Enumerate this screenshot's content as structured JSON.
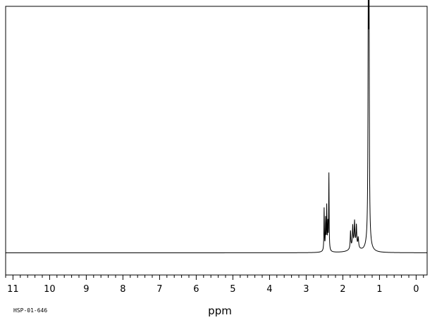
{
  "chart_data": {
    "type": "line",
    "title": "",
    "xlabel": "ppm",
    "ylabel": "",
    "sample_id": "HSP-01-646",
    "x_axis": {
      "min": -0.3,
      "max": 11.2,
      "reversed": true
    },
    "y_axis": {
      "min": -0.09,
      "max": 1.0
    },
    "x_ticks": [
      11,
      10,
      9,
      8,
      7,
      6,
      5,
      4,
      3,
      2,
      1,
      0
    ],
    "x_tick_labels": [
      "11",
      "10",
      "9",
      "8",
      "7",
      "6",
      "5",
      "4",
      "3",
      "2",
      "1",
      "0"
    ],
    "minor_tick_step": 0.2,
    "grid": false,
    "legend": "none",
    "colors": {
      "line": "#000000",
      "background": "#ffffff"
    },
    "series": [
      {
        "peaks": [
          {
            "ppm": 2.51,
            "height": 0.17,
            "width": 0.007
          },
          {
            "ppm": 2.47,
            "height": 0.12,
            "width": 0.007
          },
          {
            "ppm": 2.44,
            "height": 0.17,
            "width": 0.007
          },
          {
            "ppm": 2.41,
            "height": 0.1,
            "width": 0.007
          },
          {
            "ppm": 2.38,
            "height": 0.31,
            "width": 0.007
          },
          {
            "ppm": 1.79,
            "height": 0.07,
            "width": 0.01
          },
          {
            "ppm": 1.73,
            "height": 0.08,
            "width": 0.01
          },
          {
            "ppm": 1.68,
            "height": 0.09,
            "width": 0.01
          },
          {
            "ppm": 1.63,
            "height": 0.08,
            "width": 0.01
          },
          {
            "ppm": 1.58,
            "height": 0.04,
            "width": 0.012
          },
          {
            "ppm": 1.305,
            "height": 0.96,
            "width": 0.009
          },
          {
            "ppm": 1.285,
            "height": 0.92,
            "width": 0.009
          }
        ],
        "broad_humps": [
          {
            "ppm": 1.68,
            "height": 0.035,
            "width": 0.1
          },
          {
            "ppm": 1.3,
            "height": 0.06,
            "width": 0.06
          },
          {
            "ppm": 2.45,
            "height": 0.012,
            "width": 0.07
          }
        ]
      }
    ]
  }
}
